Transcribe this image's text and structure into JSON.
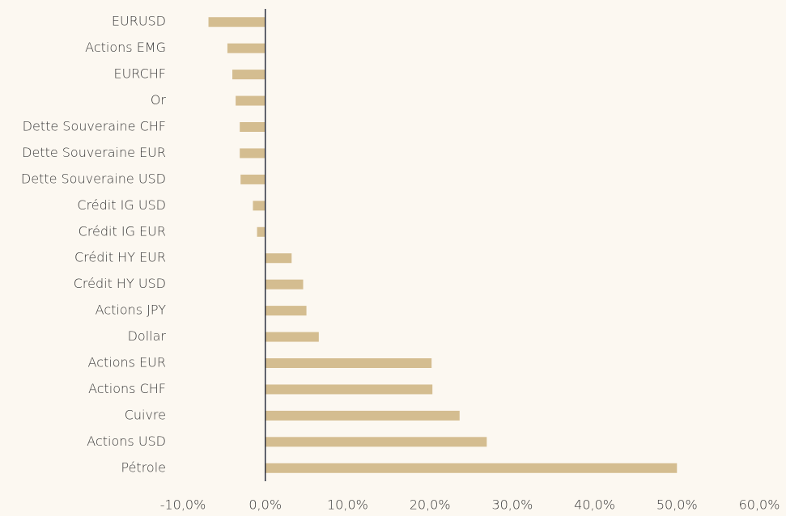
{
  "chart_data": {
    "type": "hbar",
    "categories": [
      "EURUSD",
      "Actions EMG",
      "EURCHF",
      "Or",
      "Dette Souveraine CHF",
      "Dette Souveraine EUR",
      "Dette Souveraine USD",
      "Crédit IG USD",
      "Crédit IG EUR",
      "Crédit HY EUR",
      "Crédit HY USD",
      "Actions JPY",
      "Dollar",
      "Actions EUR",
      "Actions CHF",
      "Cuivre",
      "Actions USD",
      "Pétrole"
    ],
    "values": [
      -6.9,
      -4.6,
      -4.0,
      -3.6,
      -3.1,
      -3.1,
      -3.0,
      -1.5,
      -1.0,
      3.2,
      4.6,
      5.0,
      6.5,
      20.2,
      20.3,
      23.6,
      26.9,
      50.0
    ],
    "color": "#d4bd90",
    "xlim": [
      -10,
      60
    ],
    "xticks": [
      {
        "value": -10,
        "label": "-10,0%"
      },
      {
        "value": 0,
        "label": "0,0%"
      },
      {
        "value": 10,
        "label": "10,0%"
      },
      {
        "value": 20,
        "label": "20,0%"
      },
      {
        "value": 30,
        "label": "30,0%"
      },
      {
        "value": 40,
        "label": "40,0%"
      },
      {
        "value": 50,
        "label": "50,0%"
      },
      {
        "value": 60,
        "label": "60,0%"
      }
    ]
  }
}
